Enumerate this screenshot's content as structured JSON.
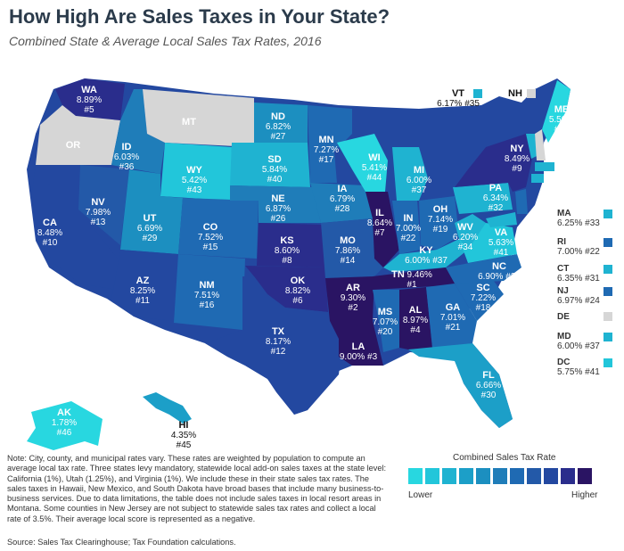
{
  "title": "How High Are Sales Taxes in Your State?",
  "subtitle": "Combined State & Average Local Sales Tax Rates, 2016",
  "colors": {
    "lightest": "#28d7e0",
    "light": "#1fb3d1",
    "midlight": "#1c8fc0",
    "mid": "#1f6ab3",
    "middark": "#2348a0",
    "dark": "#2a2d8c",
    "darkest": "#2a1463",
    "gray": "#d6d6d6"
  },
  "states": [
    {
      "abbr": "WA",
      "rate": "8.89%",
      "rank": "#5"
    },
    {
      "abbr": "OR",
      "rate": "",
      "rank": ""
    },
    {
      "abbr": "CA",
      "rate": "8.48%",
      "rank": "#10"
    },
    {
      "abbr": "ID",
      "rate": "6.03%",
      "rank": "#36"
    },
    {
      "abbr": "NV",
      "rate": "7.98%",
      "rank": "#13"
    },
    {
      "abbr": "MT",
      "rate": "",
      "rank": ""
    },
    {
      "abbr": "WY",
      "rate": "5.42%",
      "rank": "#43"
    },
    {
      "abbr": "UT",
      "rate": "6.69%",
      "rank": "#29"
    },
    {
      "abbr": "AZ",
      "rate": "8.25%",
      "rank": "#11"
    },
    {
      "abbr": "CO",
      "rate": "7.52%",
      "rank": "#15"
    },
    {
      "abbr": "NM",
      "rate": "7.51%",
      "rank": "#16"
    },
    {
      "abbr": "ND",
      "rate": "6.82%",
      "rank": "#27"
    },
    {
      "abbr": "SD",
      "rate": "5.84%",
      "rank": "#40"
    },
    {
      "abbr": "NE",
      "rate": "6.87%",
      "rank": "#26"
    },
    {
      "abbr": "KS",
      "rate": "8.60%",
      "rank": "#8"
    },
    {
      "abbr": "OK",
      "rate": "8.82%",
      "rank": "#6"
    },
    {
      "abbr": "TX",
      "rate": "8.17%",
      "rank": "#12"
    },
    {
      "abbr": "MN",
      "rate": "7.27%",
      "rank": "#17"
    },
    {
      "abbr": "IA",
      "rate": "6.79%",
      "rank": "#28"
    },
    {
      "abbr": "MO",
      "rate": "7.86%",
      "rank": "#14"
    },
    {
      "abbr": "AR",
      "rate": "9.30%",
      "rank": "#2"
    },
    {
      "abbr": "LA",
      "rate": "9.00%",
      "rank": "#3"
    },
    {
      "abbr": "WI",
      "rate": "5.41%",
      "rank": "#44"
    },
    {
      "abbr": "IL",
      "rate": "8.64%",
      "rank": "#7"
    },
    {
      "abbr": "MI",
      "rate": "6.00%",
      "rank": "#37"
    },
    {
      "abbr": "IN",
      "rate": "7.00%",
      "rank": "#22"
    },
    {
      "abbr": "OH",
      "rate": "7.14%",
      "rank": "#19"
    },
    {
      "abbr": "KY",
      "rate": "6.00%",
      "rank": "#37"
    },
    {
      "abbr": "TN",
      "rate": "9.46%",
      "rank": "#1"
    },
    {
      "abbr": "MS",
      "rate": "7.07%",
      "rank": "#20"
    },
    {
      "abbr": "AL",
      "rate": "8.97%",
      "rank": "#4"
    },
    {
      "abbr": "GA",
      "rate": "7.01%",
      "rank": "#21"
    },
    {
      "abbr": "FL",
      "rate": "6.66%",
      "rank": "#30"
    },
    {
      "abbr": "SC",
      "rate": "7.22%",
      "rank": "#18"
    },
    {
      "abbr": "NC",
      "rate": "6.90%",
      "rank": "#25"
    },
    {
      "abbr": "VA",
      "rate": "5.63%",
      "rank": "#41"
    },
    {
      "abbr": "WV",
      "rate": "6.20%",
      "rank": "#34"
    },
    {
      "abbr": "PA",
      "rate": "6.34%",
      "rank": "#32"
    },
    {
      "abbr": "NY",
      "rate": "8.49%",
      "rank": "#9"
    },
    {
      "abbr": "VT",
      "rate": "6.17%",
      "rank": "#35"
    },
    {
      "abbr": "NH",
      "rate": "",
      "rank": ""
    },
    {
      "abbr": "ME",
      "rate": "5.50%",
      "rank": "#42"
    },
    {
      "abbr": "MA",
      "rate": "6.25%",
      "rank": "#33"
    },
    {
      "abbr": "RI",
      "rate": "7.00%",
      "rank": "#22"
    },
    {
      "abbr": "CT",
      "rate": "6.35%",
      "rank": "#31"
    },
    {
      "abbr": "NJ",
      "rate": "6.97%",
      "rank": "#24"
    },
    {
      "abbr": "DE",
      "rate": "",
      "rank": ""
    },
    {
      "abbr": "MD",
      "rate": "6.00%",
      "rank": "#37"
    },
    {
      "abbr": "DC",
      "rate": "5.75%",
      "rank": "#41"
    },
    {
      "abbr": "AK",
      "rate": "1.78%",
      "rank": "#46"
    },
    {
      "abbr": "HI",
      "rate": "4.35%",
      "rank": "#45"
    }
  ],
  "legend": {
    "title": "Combined Sales Tax Rate",
    "lower": "Lower",
    "higher": "Higher",
    "swatches": [
      "#28d7e0",
      "#22c6da",
      "#1fb3d1",
      "#1c9fc8",
      "#1c8fc0",
      "#1f7db9",
      "#1f6ab3",
      "#2359a8",
      "#2348a0",
      "#2a2d8c",
      "#2a1463"
    ]
  },
  "note": "Note: City, county, and municipal rates vary. These rates are weighted by population to compute an average local tax rate. Three states levy mandatory, statewide local add-on sales taxes at the state level: California (1%), Utah (1.25%), and Virginia (1%). We include these in their state sales tax rates. The sales taxes in Hawaii, New Mexico, and South Dakota have broad bases that include many business-to-business services. Due to data limitations, the table does not include sales taxes in local resort areas in Montana. Some counties in New Jersey are not subject to statewide sales tax rates and collect a local rate of 3.5%. Their average local score is represented as a negative.",
  "source": "Source: Sales Tax Clearinghouse; Tax Foundation calculations."
}
